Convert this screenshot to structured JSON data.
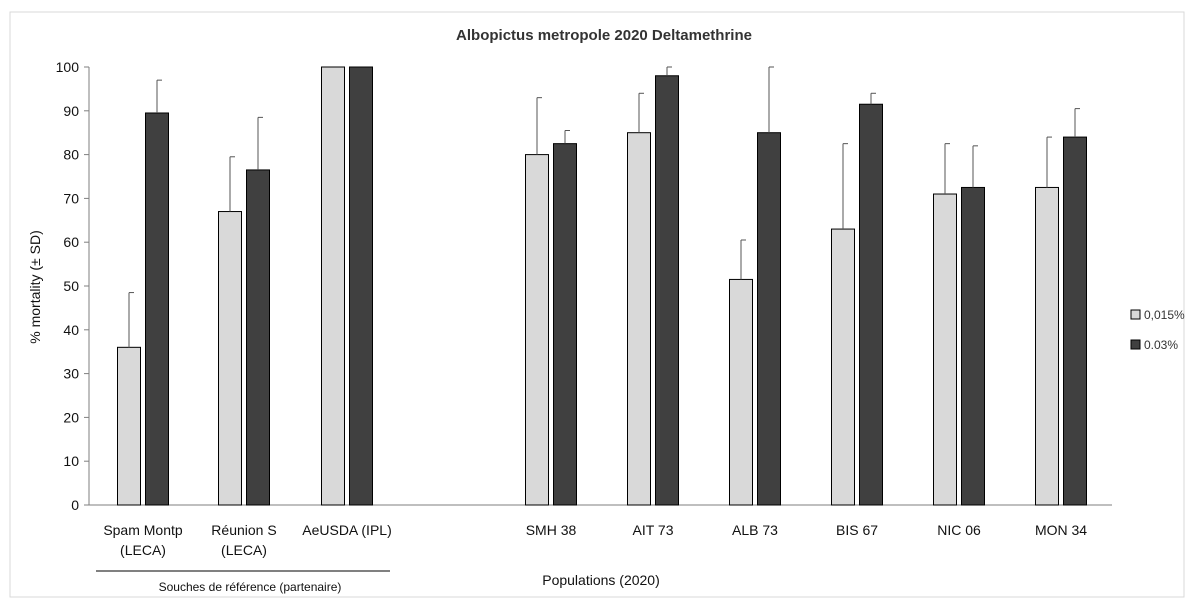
{
  "chart_data": {
    "type": "bar",
    "title": "Albopictus metropole 2020 Deltamethrine",
    "ylabel": "% mortality (± SD)",
    "ylim": [
      0,
      100
    ],
    "yticks": [
      0,
      10,
      20,
      30,
      40,
      50,
      60,
      70,
      80,
      90,
      100
    ],
    "categories": [
      [
        "Spam Montp",
        "(LECA)"
      ],
      [
        "Réunion S",
        "(LECA)"
      ],
      [
        "AeUSDA (IPL)"
      ],
      [
        "SMH 38"
      ],
      [
        "AIT 73"
      ],
      [
        "ALB 73"
      ],
      [
        "BIS 67"
      ],
      [
        "NIC 06"
      ],
      [
        "MON 34"
      ]
    ],
    "series": [
      {
        "name": "0,015%",
        "color": "#d9d9d9",
        "values": [
          36,
          67,
          100,
          80,
          85,
          51.5,
          63,
          71,
          72.5
        ],
        "errors": [
          12.5,
          12.5,
          0,
          13,
          9,
          9,
          19.5,
          11.5,
          11.5
        ]
      },
      {
        "name": "0.03%",
        "color": "#404040",
        "values": [
          89.5,
          76.5,
          100,
          82.5,
          98,
          85,
          91.5,
          72.5,
          84
        ],
        "errors": [
          7.5,
          12,
          0,
          3,
          2,
          15,
          2.5,
          9.5,
          6.5
        ]
      }
    ],
    "groups": [
      {
        "label": "Souches de référence (partenaire)"
      },
      {
        "label": "Populations (2020)"
      }
    ],
    "legend_position": "right",
    "grid": false
  }
}
